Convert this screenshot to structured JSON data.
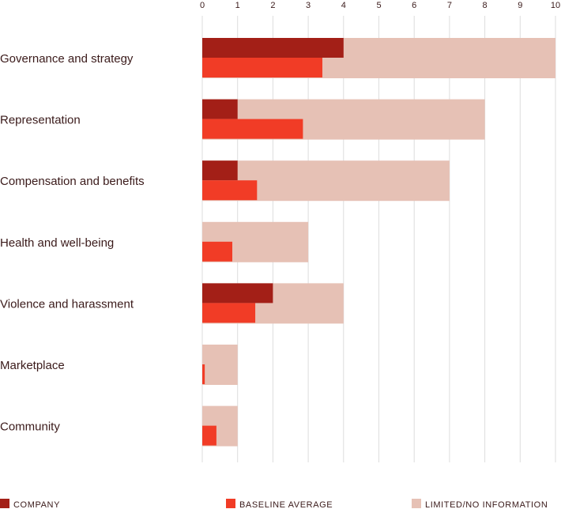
{
  "chart_data": {
    "type": "bar",
    "orientation": "horizontal",
    "categories": [
      "Governance and strategy",
      "Representation",
      "Compensation and benefits",
      "Health and well-being",
      "Violence and harassment",
      "Marketplace",
      "Community"
    ],
    "series": [
      {
        "name": "LIMITED/NO INFORMATION",
        "values": [
          10,
          8,
          7,
          3,
          4,
          1,
          1
        ]
      },
      {
        "name": "COMPANY",
        "values": [
          4,
          1,
          1,
          0,
          2,
          0,
          0
        ]
      },
      {
        "name": "BASELINE AVERAGE",
        "values": [
          3.4,
          2.85,
          1.55,
          0.85,
          1.5,
          0.07,
          0.4
        ]
      }
    ],
    "xlim": [
      0,
      10
    ],
    "xticks": [
      0,
      1,
      2,
      3,
      4,
      5,
      6,
      7,
      8,
      9,
      10
    ],
    "x_axis_position": "top",
    "grid": true,
    "legend_position": "bottom",
    "colors": {
      "COMPANY": "#a31f17",
      "BASELINE AVERAGE": "#f13c26",
      "LIMITED/NO INFORMATION": "#e6c1b5",
      "grid": "#dddddd",
      "text": "#3a1a1a"
    }
  }
}
